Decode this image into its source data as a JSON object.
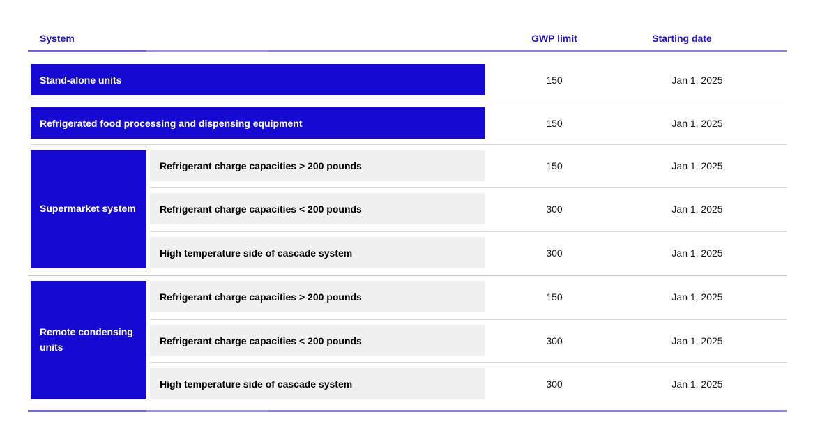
{
  "header": {
    "system": "System",
    "gwp_limit": "GWP limit",
    "starting_date": "Starting date"
  },
  "sections": [
    {
      "type": "row",
      "label": "Stand-alone units",
      "gwp_limit": "150",
      "starting_date": "Jan 1, 2025"
    },
    {
      "type": "row",
      "label": "Refrigerated food processing and dispensing equipment",
      "gwp_limit": "150",
      "starting_date": "Jan 1, 2025"
    },
    {
      "type": "group",
      "label": "Supermarket system",
      "rows": [
        {
          "label": "Refrigerant charge capacities > 200 pounds",
          "gwp_limit": "150",
          "starting_date": "Jan 1, 2025"
        },
        {
          "label": "Refrigerant charge capacities < 200 pounds",
          "gwp_limit": "300",
          "starting_date": "Jan 1, 2025"
        },
        {
          "label": "High temperature side of cascade system",
          "gwp_limit": "300",
          "starting_date": "Jan 1, 2025"
        }
      ]
    },
    {
      "type": "group",
      "label": "Remote condensing units",
      "rows": [
        {
          "label": "Refrigerant charge capacities > 200 pounds",
          "gwp_limit": "150",
          "starting_date": "Jan 1, 2025"
        },
        {
          "label": "Refrigerant charge capacities < 200 pounds",
          "gwp_limit": "300",
          "starting_date": "Jan 1, 2025"
        },
        {
          "label": "High temperature side of cascade system",
          "gwp_limit": "300",
          "starting_date": "Jan 1, 2025"
        }
      ]
    }
  ],
  "chart_data": {
    "type": "table",
    "title": "",
    "columns": [
      "System",
      "GWP limit",
      "Starting date"
    ],
    "rows": [
      {
        "system": "Stand-alone units",
        "subsystem": "",
        "gwp_limit": 150,
        "starting_date": "Jan 1, 2025"
      },
      {
        "system": "Refrigerated food processing and dispensing equipment",
        "subsystem": "",
        "gwp_limit": 150,
        "starting_date": "Jan 1, 2025"
      },
      {
        "system": "Supermarket system",
        "subsystem": "Refrigerant charge capacities > 200 pounds",
        "gwp_limit": 150,
        "starting_date": "Jan 1, 2025"
      },
      {
        "system": "Supermarket system",
        "subsystem": "Refrigerant charge capacities < 200 pounds",
        "gwp_limit": 300,
        "starting_date": "Jan 1, 2025"
      },
      {
        "system": "Supermarket system",
        "subsystem": "High temperature side of cascade system",
        "gwp_limit": 300,
        "starting_date": "Jan 1, 2025"
      },
      {
        "system": "Remote condensing units",
        "subsystem": "Refrigerant charge capacities > 200 pounds",
        "gwp_limit": 150,
        "starting_date": "Jan 1, 2025"
      },
      {
        "system": "Remote condensing units",
        "subsystem": "Refrigerant charge capacities < 200 pounds",
        "gwp_limit": 300,
        "starting_date": "Jan 1, 2025"
      },
      {
        "system": "Remote condensing units",
        "subsystem": "High temperature side of cascade system",
        "gwp_limit": 300,
        "starting_date": "Jan 1, 2025"
      }
    ]
  },
  "colors": {
    "accent_blue": "#1509d2",
    "header_text_blue": "#1f13c6",
    "rule_periwinkle": "#8a82dd",
    "subrow_gray": "#f0f0f0",
    "divider_gray": "#d9d9d9"
  }
}
